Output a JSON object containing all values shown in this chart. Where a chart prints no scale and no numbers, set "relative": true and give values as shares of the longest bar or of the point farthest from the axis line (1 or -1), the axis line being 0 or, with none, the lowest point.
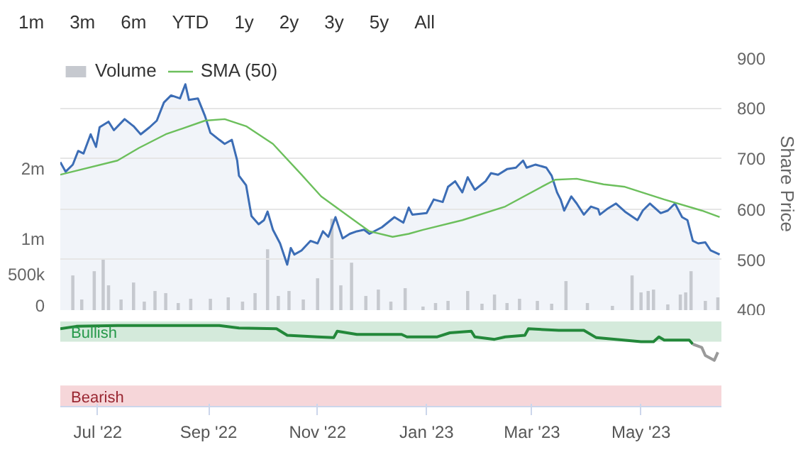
{
  "chart_data": [
    {
      "type": "line",
      "annotations": [
        "1m",
        "3m",
        "6m",
        "YTD",
        "1y",
        "2y",
        "3y",
        "5y",
        "All"
      ],
      "ylabel": "Share Price",
      "legend": "top left",
      "grid": "y",
      "tick_labels": "y",
      "xlim": [
        "2022-06-10",
        "2023-06-15"
      ],
      "ylim": [
        400,
        900
      ],
      "yticks": [
        400,
        500,
        600,
        700,
        800,
        900
      ],
      "y2lim": [
        0,
        3570000
      ],
      "y2ticks": [
        0,
        {
          "value": 500000,
          "label": "500k"
        },
        {
          "value": 1000000,
          "label": "1m"
        },
        {
          "value": 2000000,
          "label": "2m"
        }
      ],
      "series": [
        {
          "type": "bar",
          "axis": "y2",
          "name": "Volume",
          "color": "#c6c9cf",
          "x": [
            "2022-06-17",
            "2022-06-22",
            "2022-06-29",
            "2022-07-04",
            "2022-07-07",
            "2022-07-14",
            "2022-07-21",
            "2022-07-27",
            "2022-08-02",
            "2022-08-08",
            "2022-08-15",
            "2022-08-22",
            "2022-09-02",
            "2022-09-12",
            "2022-09-20",
            "2022-09-27",
            "2022-10-04",
            "2022-10-10",
            "2022-10-16",
            "2022-10-24",
            "2022-11-01",
            "2022-11-09",
            "2022-11-14",
            "2022-11-20",
            "2022-11-28",
            "2022-12-05",
            "2022-12-12",
            "2022-12-20",
            "2022-12-30",
            "2023-01-06",
            "2023-01-13",
            "2023-01-24",
            "2023-02-01",
            "2023-02-08",
            "2023-02-15",
            "2023-02-22",
            "2023-03-04",
            "2023-03-12",
            "2023-03-20",
            "2023-04-01",
            "2023-04-15",
            "2023-04-26",
            "2023-05-01",
            "2023-05-05",
            "2023-05-08",
            "2023-05-16",
            "2023-05-23",
            "2023-05-26",
            "2023-05-29",
            "2023-06-06",
            "2023-06-13"
          ],
          "values": [
            490000,
            150000,
            550000,
            730000,
            350000,
            150000,
            390000,
            120000,
            270000,
            240000,
            100000,
            160000,
            160000,
            180000,
            120000,
            240000,
            860000,
            200000,
            270000,
            150000,
            450000,
            1290000,
            350000,
            670000,
            200000,
            290000,
            120000,
            310000,
            50000,
            100000,
            130000,
            270000,
            90000,
            220000,
            100000,
            160000,
            130000,
            90000,
            410000,
            100000,
            60000,
            490000,
            250000,
            270000,
            290000,
            80000,
            220000,
            250000,
            550000,
            130000,
            180000
          ]
        },
        {
          "type": "area",
          "color": "#3c6db5",
          "x": [
            "2022-06-10",
            "2022-06-13",
            "2022-06-17",
            "2022-06-20",
            "2022-06-23",
            "2022-06-27",
            "2022-06-30",
            "2022-07-02",
            "2022-07-07",
            "2022-07-10",
            "2022-07-16",
            "2022-07-21",
            "2022-07-25",
            "2022-07-30",
            "2022-08-03",
            "2022-08-07",
            "2022-08-11",
            "2022-08-16",
            "2022-08-19",
            "2022-08-21",
            "2022-08-26",
            "2022-08-30",
            "2022-09-02",
            "2022-09-07",
            "2022-09-10",
            "2022-09-14",
            "2022-09-17",
            "2022-09-18",
            "2022-09-22",
            "2022-09-25",
            "2022-09-29",
            "2022-10-02",
            "2022-10-04",
            "2022-10-07",
            "2022-10-11",
            "2022-10-15",
            "2022-10-17",
            "2022-10-19",
            "2022-10-23",
            "2022-10-28",
            "2022-11-01",
            "2022-11-04",
            "2022-11-07",
            "2022-11-11",
            "2022-11-15",
            "2022-11-19",
            "2022-11-23",
            "2022-11-27",
            "2022-11-30",
            "2022-12-07",
            "2022-12-14",
            "2022-12-19",
            "2022-12-22",
            "2022-12-24",
            "2023-01-01",
            "2023-01-05",
            "2023-01-10",
            "2023-01-13",
            "2023-01-17",
            "2023-01-21",
            "2023-01-24",
            "2023-01-28",
            "2023-02-03",
            "2023-02-06",
            "2023-02-10",
            "2023-02-15",
            "2023-02-20",
            "2023-02-24",
            "2023-02-26",
            "2023-03-03",
            "2023-03-09",
            "2023-03-12",
            "2023-03-15",
            "2023-03-17",
            "2023-03-19",
            "2023-03-23",
            "2023-03-26",
            "2023-03-30",
            "2023-04-03",
            "2023-04-07",
            "2023-04-08",
            "2023-04-12",
            "2023-04-17",
            "2023-04-22",
            "2023-04-29",
            "2023-05-02",
            "2023-05-06",
            "2023-05-12",
            "2023-05-16",
            "2023-05-20",
            "2023-05-24",
            "2023-05-27",
            "2023-05-30",
            "2023-06-02",
            "2023-06-06",
            "2023-06-09",
            "2023-06-14"
          ],
          "values": [
            693,
            674,
            688,
            715,
            710,
            748,
            723,
            762,
            773,
            756,
            778,
            764,
            748,
            762,
            775,
            811,
            825,
            819,
            847,
            816,
            819,
            784,
            751,
            737,
            729,
            737,
            696,
            666,
            647,
            586,
            570,
            578,
            595,
            559,
            532,
            490,
            523,
            510,
            518,
            537,
            532,
            556,
            545,
            584,
            542,
            551,
            556,
            559,
            551,
            564,
            584,
            573,
            603,
            589,
            592,
            619,
            614,
            644,
            655,
            633,
            663,
            638,
            655,
            671,
            668,
            679,
            682,
            696,
            682,
            688,
            682,
            666,
            633,
            619,
            597,
            625,
            611,
            589,
            605,
            600,
            589,
            600,
            611,
            595,
            578,
            597,
            611,
            592,
            597,
            611,
            584,
            578,
            537,
            532,
            534,
            518,
            510
          ]
        },
        {
          "type": "line",
          "name": "SMA (50)",
          "color": "#6cbf5c",
          "x": [
            "2022-06-10",
            "2022-07-12",
            "2022-07-24",
            "2022-08-08",
            "2022-08-30",
            "2022-09-10",
            "2022-09-22",
            "2022-10-07",
            "2022-10-23",
            "2022-11-03",
            "2022-11-19",
            "2022-11-30",
            "2022-12-13",
            "2022-12-22",
            "2022-12-30",
            "2023-01-21",
            "2023-02-14",
            "2023-03-08",
            "2023-03-14",
            "2023-03-26",
            "2023-04-10",
            "2023-04-22",
            "2023-05-14",
            "2023-06-04",
            "2023-06-14"
          ],
          "values": [
            668,
            696,
            721,
            748,
            775,
            778,
            764,
            729,
            668,
            625,
            584,
            556,
            545,
            551,
            559,
            578,
            605,
            647,
            658,
            660,
            649,
            644,
            619,
            597,
            584
          ]
        }
      ]
    },
    {
      "type": "line",
      "relative": true,
      "annotations": [
        "0"
      ],
      "xlim": [
        "2022-06-10",
        "2023-06-15"
      ],
      "xticks": [
        {
          "value": "2022-07-01",
          "label": "Jul '22"
        },
        {
          "value": "2022-09-01",
          "label": "Sep '22"
        },
        {
          "value": "2022-11-01",
          "label": "Nov '22"
        },
        {
          "value": "2023-01-01",
          "label": "Jan '23"
        },
        {
          "value": "2023-03-01",
          "label": "Mar '23"
        },
        {
          "value": "2023-05-01",
          "label": "May '23"
        }
      ],
      "bands": [
        {
          "axis": "y",
          "from": 0.8,
          "to": 1.05,
          "label": "Bullish",
          "color": "#d4eadb"
        },
        {
          "axis": "y",
          "from": 0,
          "to": 0.26,
          "label": "Bearish",
          "color": "#f6d6d9"
        }
      ],
      "series": [
        {
          "color": "#23883a",
          "x": [
            "2022-06-10",
            "2022-06-19",
            "2022-07-12",
            "2022-08-16",
            "2022-09-07",
            "2022-09-18",
            "2022-10-09",
            "2022-10-15",
            "2022-11-01",
            "2022-11-10",
            "2022-11-12",
            "2022-11-23",
            "2022-12-18",
            "2022-12-21",
            "2023-01-07",
            "2023-01-14",
            "2023-01-26",
            "2023-01-28",
            "2023-02-08",
            "2023-02-14",
            "2023-02-25",
            "2023-02-27",
            "2023-03-16",
            "2023-03-30",
            "2023-04-06",
            "2023-05-01",
            "2023-05-08",
            "2023-05-11",
            "2023-05-14",
            "2023-05-28",
            "2023-05-30"
          ],
          "values": [
            0.96,
            0.99,
            1,
            1,
            1,
            0.97,
            0.96,
            0.88,
            0.86,
            0.85,
            0.93,
            0.89,
            0.89,
            0.86,
            0.86,
            0.91,
            0.93,
            0.86,
            0.83,
            0.86,
            0.88,
            0.96,
            0.94,
            0.94,
            0.85,
            0.8,
            0.8,
            0.86,
            0.82,
            0.82,
            0.77
          ]
        },
        {
          "color": "#9a9a9a",
          "x": [
            "2023-05-30",
            "2023-06-04",
            "2023-06-06",
            "2023-06-11",
            "2023-06-13"
          ],
          "values": [
            0.77,
            0.73,
            0.63,
            0.57,
            0.67
          ]
        }
      ]
    }
  ]
}
